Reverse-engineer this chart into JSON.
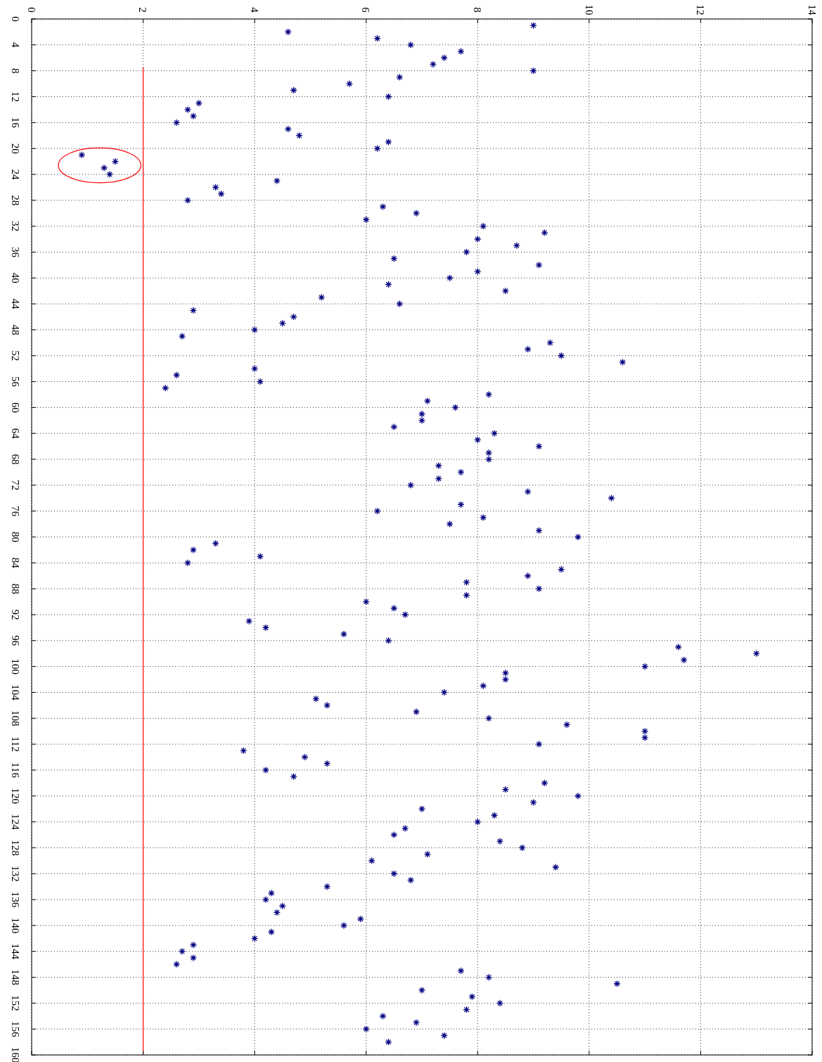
{
  "chart_data": {
    "type": "scatter",
    "xlim": [
      0,
      14
    ],
    "xticks": [
      0,
      2,
      4,
      6,
      8,
      10,
      12,
      14
    ],
    "ylim": [
      160,
      0
    ],
    "yticks": [
      0,
      4,
      8,
      12,
      16,
      20,
      24,
      28,
      32,
      36,
      40,
      44,
      48,
      52,
      56,
      60,
      64,
      68,
      72,
      76,
      80,
      84,
      88,
      92,
      96,
      100,
      104,
      108,
      112,
      116,
      120,
      124,
      128,
      132,
      136,
      140,
      144,
      148,
      152,
      156,
      160
    ],
    "grid": true,
    "marker": "cross",
    "series": [
      {
        "color": "#000080",
        "values": [
          1,
          2,
          3,
          4,
          5,
          6,
          7,
          8,
          9,
          10,
          11,
          12,
          13,
          14,
          15,
          16,
          17,
          18,
          19,
          20,
          21,
          22,
          23,
          24,
          25,
          26,
          27,
          28,
          29,
          30,
          31,
          32,
          33,
          34,
          35,
          36,
          37,
          38,
          39,
          40,
          41,
          42,
          43,
          44,
          45,
          46,
          47,
          48,
          49,
          50,
          51,
          52,
          53,
          54,
          55,
          56,
          57,
          58,
          59,
          60,
          61,
          62,
          63,
          64,
          65,
          66,
          67,
          68,
          69,
          70,
          71,
          72,
          73,
          74,
          75,
          76,
          77,
          78,
          79,
          80,
          81,
          82,
          83,
          84,
          85,
          86,
          87,
          88,
          89,
          90,
          91,
          92,
          93,
          94,
          95,
          96,
          97,
          98,
          99,
          100,
          101,
          102,
          103,
          104,
          105,
          106,
          107,
          108,
          109,
          110,
          111,
          112,
          113,
          114,
          115,
          116,
          117,
          118,
          119,
          120,
          121,
          122,
          123,
          124,
          125,
          126,
          127,
          128,
          129,
          130,
          131,
          132,
          133,
          134,
          135,
          136,
          137,
          138,
          139,
          140,
          141,
          142,
          143,
          144,
          145,
          146,
          147,
          148,
          149,
          150,
          151,
          152,
          153,
          154,
          155,
          156,
          157,
          158
        ],
        "x": [
          9.0,
          4.6,
          6.2,
          6.8,
          7.7,
          7.4,
          7.2,
          9.0,
          6.6,
          5.7,
          4.7,
          6.4,
          3.0,
          2.8,
          2.9,
          2.6,
          4.6,
          4.8,
          6.4,
          6.2,
          0.9,
          1.5,
          1.3,
          1.4,
          4.4,
          3.3,
          3.4,
          2.8,
          6.3,
          6.9,
          6.0,
          8.1,
          9.2,
          8.0,
          8.7,
          7.8,
          6.5,
          9.1,
          8.0,
          7.5,
          6.4,
          8.5,
          5.2,
          6.6,
          2.9,
          4.7,
          4.5,
          4.0,
          2.7,
          9.3,
          8.9,
          9.5,
          10.6,
          4.0,
          2.6,
          4.1,
          2.4,
          8.2,
          7.1,
          7.6,
          7.0,
          7.0,
          6.5,
          8.3,
          8.0,
          9.1,
          8.2,
          8.2,
          7.3,
          7.7,
          7.3,
          6.8,
          8.9,
          10.4,
          7.7,
          6.2,
          8.1,
          7.5,
          9.1,
          9.8,
          3.3,
          2.9,
          4.1,
          2.8,
          9.5,
          8.9,
          7.8,
          9.1,
          7.8,
          6.0,
          6.5,
          6.7,
          3.9,
          4.2,
          5.6,
          6.4,
          11.6,
          13.0,
          11.7,
          11.0,
          8.5,
          8.5,
          8.1,
          7.4,
          5.1,
          5.3,
          6.9,
          8.2,
          9.6,
          11.0,
          11.0,
          9.1,
          3.8,
          4.9,
          5.3,
          4.2,
          4.7,
          9.2,
          8.5,
          9.8,
          9.0,
          7.0,
          8.3,
          8.0,
          6.7,
          6.5,
          8.4,
          8.8,
          7.1,
          6.1,
          9.4,
          6.5,
          6.8,
          5.3,
          4.3,
          4.2,
          4.5,
          4.4,
          5.9,
          5.6,
          4.3,
          4.0,
          2.9,
          2.7,
          2.9,
          2.6,
          7.7,
          8.2,
          10.5,
          7.0,
          7.9,
          8.4,
          7.8,
          6.3,
          6.9,
          6.0,
          7.4,
          6.4
        ]
      },
      {
        "type": "line",
        "color": "#ff0000",
        "marker": "none",
        "x": [
          2,
          2
        ],
        "values": [
          7.5,
          160
        ]
      }
    ]
  }
}
